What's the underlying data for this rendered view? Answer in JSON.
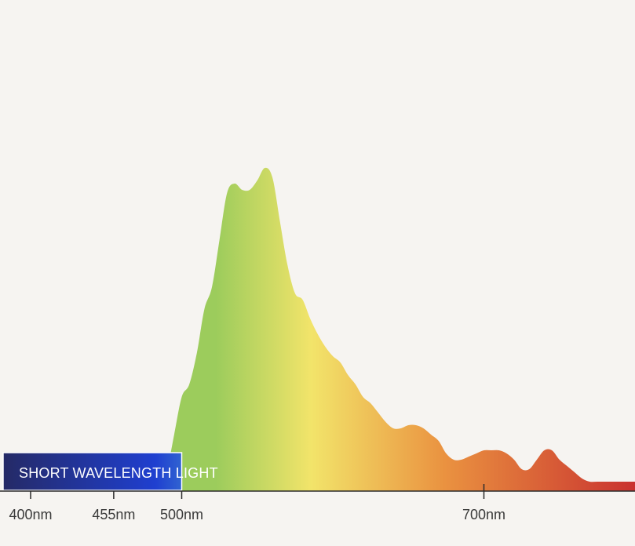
{
  "chart_data": {
    "type": "area",
    "xlabel": "",
    "ylabel": "",
    "xlim": [
      400,
      805
    ],
    "ylim": [
      0,
      1
    ],
    "x_ticks": [
      {
        "value": 400,
        "label": "400nm"
      },
      {
        "value": 455,
        "label": "455nm"
      },
      {
        "value": 500,
        "label": "500nm"
      },
      {
        "value": 700,
        "label": "700nm"
      }
    ],
    "band": {
      "label": "SHORT WAVELENGTH LIGHT",
      "from": 400,
      "to": 500
    },
    "colors": {
      "background": "#f6f4f1",
      "axis": "#2b2b2b",
      "band_start": "#252a66",
      "band_mid": "#1f3fd0",
      "band_end": "#5cc0d4",
      "spectrum_green": "#9ccc5c",
      "spectrum_yellow": "#f2e46a",
      "spectrum_orange": "#ea9240",
      "spectrum_red": "#c9322f"
    },
    "series": [
      {
        "x": [
          485,
          490,
          495,
          500,
          505,
          510,
          515,
          520,
          525,
          530,
          535,
          540,
          545,
          550,
          555,
          560,
          565,
          570,
          575,
          580,
          585,
          590,
          595,
          600,
          605,
          610,
          615,
          620,
          625,
          630,
          635,
          640,
          645,
          650,
          655,
          660,
          665,
          670,
          675,
          680,
          685,
          690,
          695,
          700,
          705,
          710,
          715,
          720,
          725,
          730,
          735,
          740,
          745,
          750,
          755,
          760,
          765,
          770,
          775,
          780,
          785,
          790,
          795,
          800,
          805
        ],
        "values": [
          0.0,
          0.06,
          0.18,
          0.3,
          0.34,
          0.44,
          0.58,
          0.65,
          0.8,
          0.95,
          0.98,
          0.96,
          0.96,
          0.99,
          1.03,
          1.0,
          0.86,
          0.72,
          0.63,
          0.61,
          0.55,
          0.5,
          0.46,
          0.43,
          0.41,
          0.37,
          0.34,
          0.3,
          0.28,
          0.25,
          0.22,
          0.2,
          0.2,
          0.21,
          0.21,
          0.2,
          0.18,
          0.16,
          0.12,
          0.1,
          0.1,
          0.11,
          0.12,
          0.13,
          0.13,
          0.13,
          0.12,
          0.1,
          0.07,
          0.07,
          0.1,
          0.13,
          0.13,
          0.1,
          0.08,
          0.06,
          0.04,
          0.03,
          0.03,
          0.03,
          0.03,
          0.03,
          0.03,
          0.03,
          0.03
        ]
      }
    ]
  }
}
